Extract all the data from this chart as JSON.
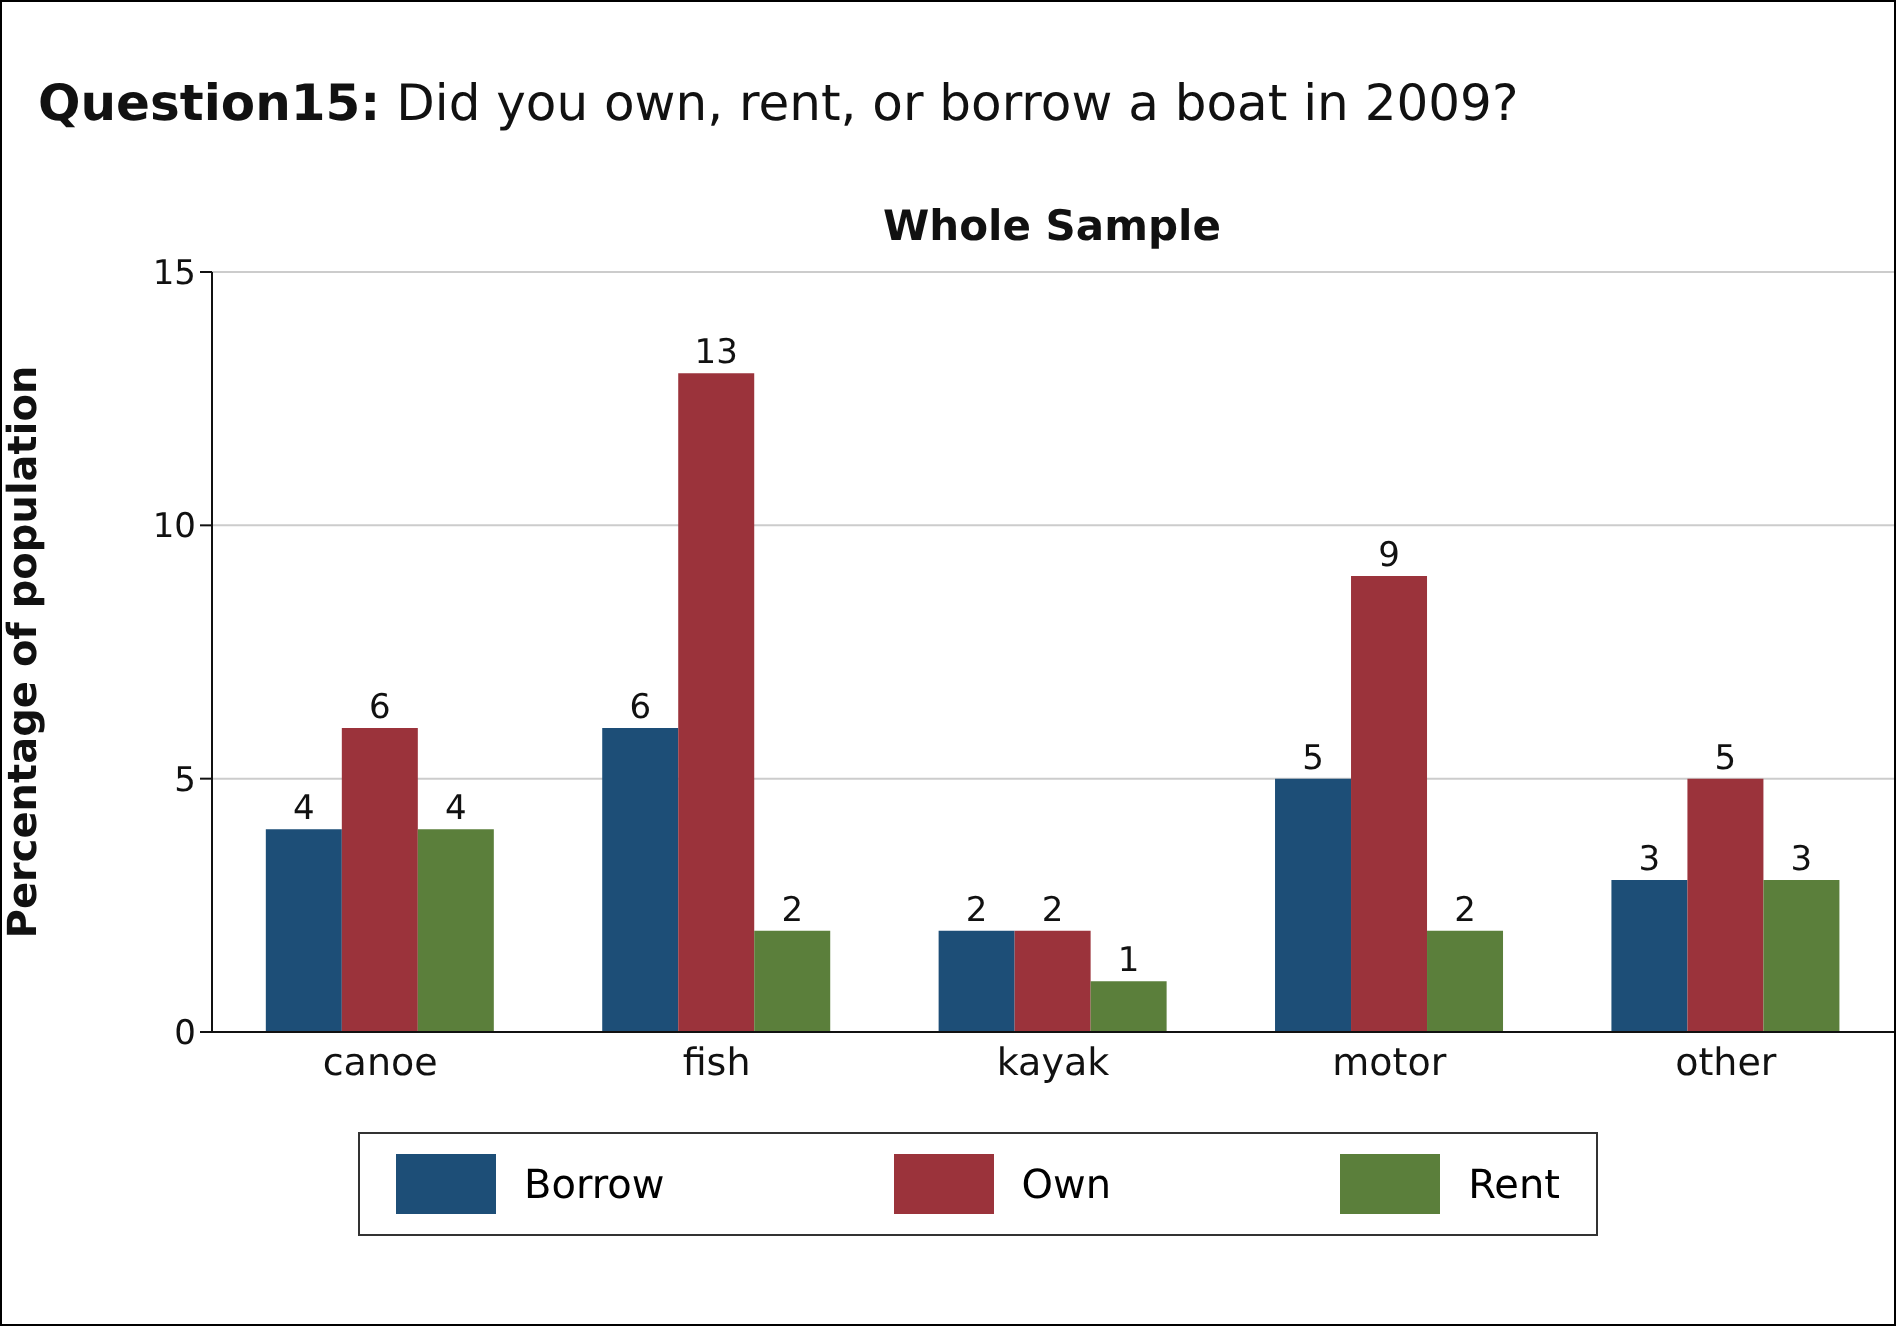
{
  "chart_data": {
    "type": "bar",
    "title": "Question15: Did you own, rent, or borrow a boat in 2009?",
    "subtitle": "Whole Sample",
    "ylabel": "Percentage of population",
    "categories": [
      "canoe",
      "fish",
      "kayak",
      "motor",
      "other"
    ],
    "series": [
      {
        "name": "Borrow",
        "color": "#1d4e77",
        "values": [
          4,
          6,
          2,
          5,
          3
        ]
      },
      {
        "name": "Own",
        "color": "#9b333b",
        "values": [
          6,
          13,
          2,
          9,
          5
        ]
      },
      {
        "name": "Rent",
        "color": "#5b7f3b",
        "values": [
          4,
          2,
          1,
          2,
          3
        ]
      }
    ],
    "ylim": [
      0,
      15
    ],
    "yticks": [
      0,
      5,
      10,
      15
    ],
    "grid": "y",
    "legend": "bottom",
    "data_labels": true
  }
}
